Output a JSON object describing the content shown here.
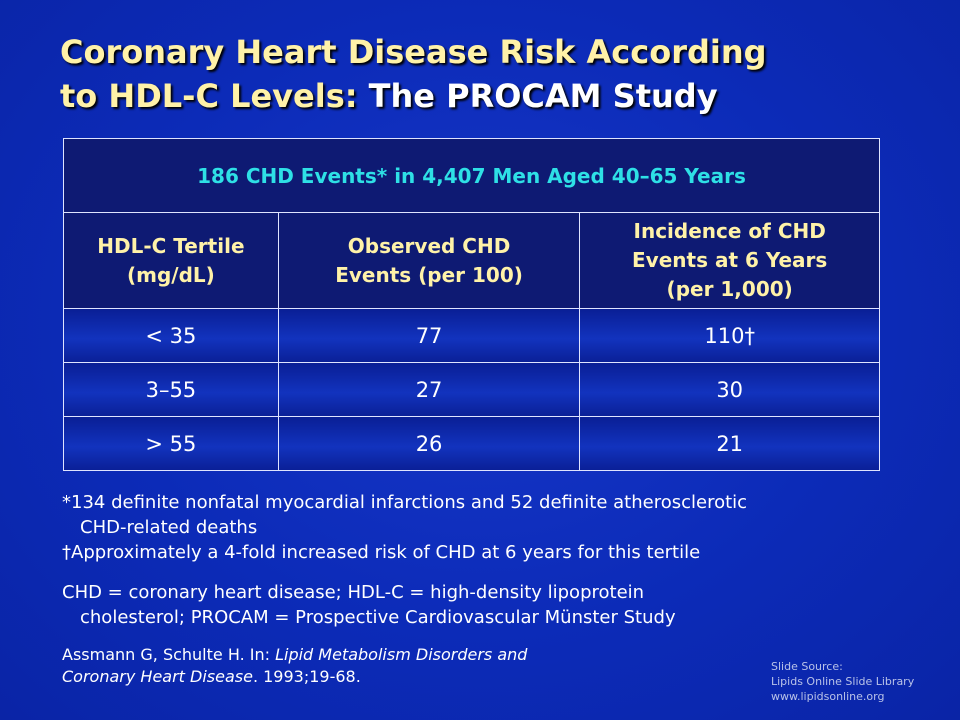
{
  "title": {
    "part1_line1": "Coronary Heart Disease Risk According",
    "part1_line2": "to HDL-C Levels:",
    "part2": "The PROCAM Study"
  },
  "table": {
    "caption": "186 CHD Events* in 4,407 Men Aged 40–65 Years",
    "headers": [
      {
        "line1": "HDL-C Tertile",
        "line2": "(mg/dL)",
        "line3": ""
      },
      {
        "line1": "Observed CHD",
        "line2": "Events (per 100)",
        "line3": ""
      },
      {
        "line1": "Incidence of CHD",
        "line2": "Events at 6 Years",
        "line3": "(per 1,000)"
      }
    ],
    "rows": [
      [
        "< 35",
        "77",
        "110†"
      ],
      [
        "3–55",
        "27",
        "30"
      ],
      [
        "> 55",
        "26",
        "21"
      ]
    ]
  },
  "footnotes": {
    "star_line1": "*134 definite nonfatal myocardial infarctions and 52 definite atherosclerotic",
    "star_line2": "CHD-related deaths",
    "dagger": "†Approximately a 4-fold increased risk of CHD at 6 years for this tertile",
    "abbrev_line1": "CHD = coronary heart disease; HDL-C = high-density lipoprotein",
    "abbrev_line2": "cholesterol; PROCAM = Prospective Cardiovascular Münster Study"
  },
  "citation": {
    "authors": "Assmann G, Schulte H. In:",
    "book_line1": "Lipid Metabolism Disorders and",
    "book_line2": "Coronary Heart Disease",
    "rest": ". 1993;19-68."
  },
  "slide_source": {
    "line1": "Slide Source:",
    "line2": "Lipids Online Slide Library",
    "line3": "www.lipidsonline.org"
  },
  "colors": {
    "background": "#0c2bb8",
    "title_yellow": "#fff2a8",
    "caption_cyan": "#2ee0e6",
    "header_bg": "#0e1a73"
  }
}
